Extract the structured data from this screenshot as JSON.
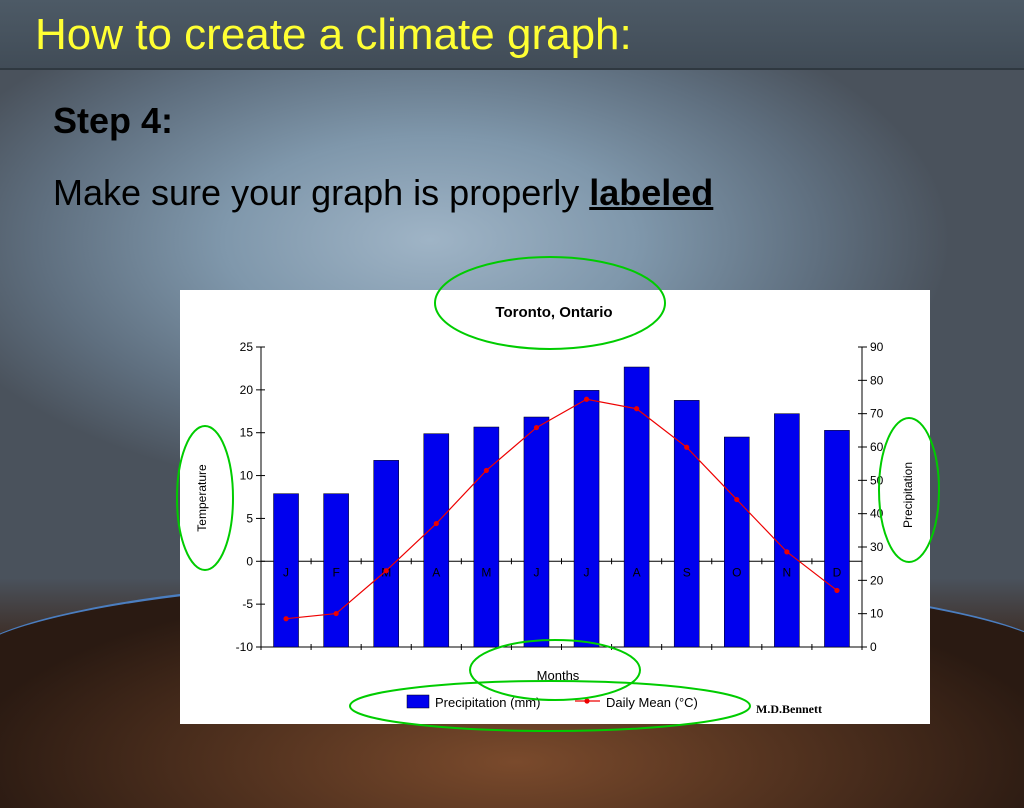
{
  "slide": {
    "title": "How to create a climate graph:",
    "step": "Step 4:",
    "instruction_prefix": "Make sure your graph is properly ",
    "instruction_emphasis": "labeled",
    "credit": "M.D.Bennett"
  },
  "colors": {
    "title": "#ffff33",
    "bar": "#0000ee",
    "line": "#ee0000",
    "highlight_oval": "#00cc00"
  },
  "chart_data": {
    "type": "bar",
    "title": "Toronto, Ontario",
    "xlabel": "Months",
    "ylabel_left": "Temperature",
    "ylabel_right": "Precipitation",
    "categories": [
      "J",
      "F",
      "M",
      "A",
      "M",
      "J",
      "J",
      "A",
      "S",
      "O",
      "N",
      "D"
    ],
    "ylim_left": [
      -10,
      25
    ],
    "yticks_left": [
      25,
      20,
      15,
      10,
      5,
      0,
      -5,
      -10
    ],
    "ylim_right": [
      0,
      90
    ],
    "yticks_right": [
      90,
      80,
      70,
      60,
      50,
      40,
      30,
      20,
      10,
      0
    ],
    "series": [
      {
        "name": "Precipitation (mm)",
        "type": "bar",
        "axis": "right",
        "values": [
          46,
          46,
          56,
          64,
          66,
          69,
          77,
          84,
          74,
          63,
          70,
          65
        ]
      },
      {
        "name": "Daily Mean (°C)",
        "type": "line",
        "axis": "left",
        "values": [
          -6.7,
          -6.1,
          -1.1,
          4.4,
          10.6,
          15.6,
          18.9,
          17.8,
          13.3,
          7.2,
          1.1,
          -3.4
        ]
      }
    ],
    "legend_position": "bottom"
  }
}
